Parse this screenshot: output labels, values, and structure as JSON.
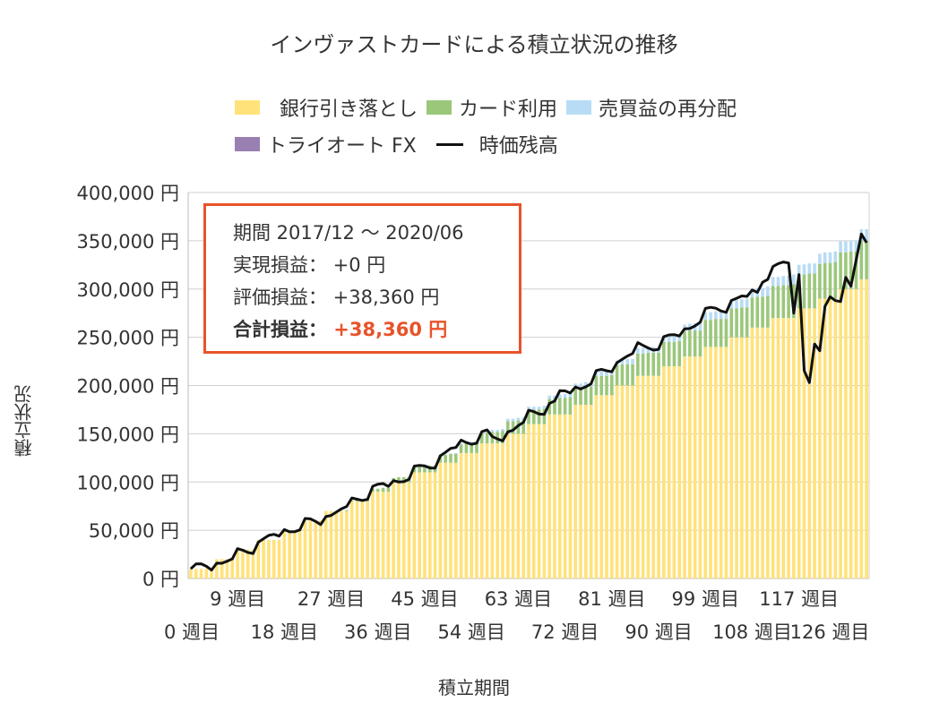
{
  "chart_data": {
    "type": "bar",
    "title": "インヴァストカードによる積立状況の推移",
    "xlabel": "積立期間",
    "ylabel": "積立状況",
    "ylim": [
      0,
      400000
    ],
    "y_ticks": [
      "0 円",
      "50,000 円",
      "100,000 円",
      "150,000 円",
      "200,000 円",
      "250,000 円",
      "300,000 円",
      "350,000 円",
      "400,000 円"
    ],
    "x_ticks_upper": [
      "9 週目",
      "27 週目",
      "45 週目",
      "63 週目",
      "81 週目",
      "99 週目",
      "117 週目"
    ],
    "x_ticks_lower": [
      "0 週目",
      "18 週目",
      "36 週目",
      "54 週目",
      "72 週目",
      "90 週目",
      "108 週目",
      "126 週目"
    ],
    "n_weeks": 131,
    "series": [
      {
        "name": "銀行引き落とし",
        "color": "#ffe27a",
        "type": "stacked-bar",
        "monthly_step": 10000,
        "final": 310000
      },
      {
        "name": "カード利用",
        "color": "#9bc77b",
        "type": "stacked-bar",
        "final": 40000
      },
      {
        "name": "売買益の再分配",
        "color": "#b8dcf5",
        "type": "stacked-bar",
        "final": 12000
      },
      {
        "name": "トライオート FX",
        "color": "#9a7fb2",
        "type": "stacked-bar",
        "final": 0
      },
      {
        "name": "時価残高",
        "color": "#111111",
        "type": "line",
        "final": 348000,
        "min_dip": 203000
      }
    ]
  },
  "legend": {
    "items": [
      {
        "label": "銀行引き落とし",
        "color": "#ffe27a"
      },
      {
        "label": "カード利用",
        "color": "#9bc77b"
      },
      {
        "label": "売買益の再分配",
        "color": "#b8dcf5"
      },
      {
        "label": "トライオート FX",
        "color": "#9a7fb2"
      },
      {
        "label": "時価残高",
        "color": "#111111"
      }
    ]
  },
  "info": {
    "period": "期間 2017/12 〜 2020/06",
    "realized": "実現損益：  +0 円",
    "unrealized": "評価損益：  +38,360 円",
    "total_label": "合計損益：",
    "total_value": " +38,360 円"
  }
}
